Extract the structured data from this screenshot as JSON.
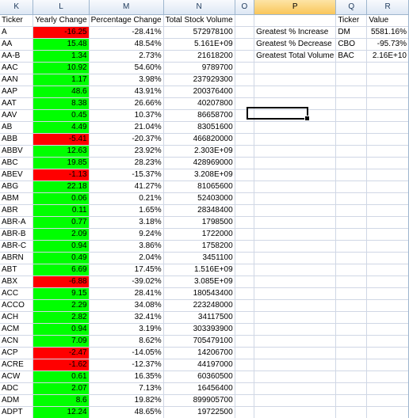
{
  "columns": [
    "K",
    "L",
    "M",
    "N",
    "O",
    "P",
    "Q",
    "R"
  ],
  "selected_column": "P",
  "headers": {
    "ticker": "Ticker",
    "yearly_change": "Yearly Change",
    "percentage": "Percentage Change",
    "total_volume": "Total Stock Volume",
    "summary_ticker": "Ticker",
    "summary_value": "Value"
  },
  "rows": [
    {
      "ticker": "A",
      "change": "-16.25",
      "status": "neg",
      "pct": "-28.41%",
      "volume": "572978100"
    },
    {
      "ticker": "AA",
      "change": "15.48",
      "status": "pos",
      "pct": "48.54%",
      "volume": "5.161E+09"
    },
    {
      "ticker": "AA-B",
      "change": "1.34",
      "status": "pos",
      "pct": "2.73%",
      "volume": "21618200"
    },
    {
      "ticker": "AAC",
      "change": "10.92",
      "status": "pos",
      "pct": "54.60%",
      "volume": "9789700"
    },
    {
      "ticker": "AAN",
      "change": "1.17",
      "status": "pos",
      "pct": "3.98%",
      "volume": "237929300"
    },
    {
      "ticker": "AAP",
      "change": "48.6",
      "status": "pos",
      "pct": "43.91%",
      "volume": "200376400"
    },
    {
      "ticker": "AAT",
      "change": "8.38",
      "status": "pos",
      "pct": "26.66%",
      "volume": "40207800"
    },
    {
      "ticker": "AAV",
      "change": "0.45",
      "status": "pos",
      "pct": "10.37%",
      "volume": "86658700"
    },
    {
      "ticker": "AB",
      "change": "4.49",
      "status": "pos",
      "pct": "21.04%",
      "volume": "83051600"
    },
    {
      "ticker": "ABB",
      "change": "-5.41",
      "status": "neg",
      "pct": "-20.37%",
      "volume": "466820000"
    },
    {
      "ticker": "ABBV",
      "change": "12.63",
      "status": "pos",
      "pct": "23.92%",
      "volume": "2.303E+09"
    },
    {
      "ticker": "ABC",
      "change": "19.85",
      "status": "pos",
      "pct": "28.23%",
      "volume": "428969000"
    },
    {
      "ticker": "ABEV",
      "change": "-1.13",
      "status": "neg",
      "pct": "-15.37%",
      "volume": "3.208E+09"
    },
    {
      "ticker": "ABG",
      "change": "22.18",
      "status": "pos",
      "pct": "41.27%",
      "volume": "81065600"
    },
    {
      "ticker": "ABM",
      "change": "0.06",
      "status": "pos",
      "pct": "0.21%",
      "volume": "52403000"
    },
    {
      "ticker": "ABR",
      "change": "0.11",
      "status": "pos",
      "pct": "1.65%",
      "volume": "28348400"
    },
    {
      "ticker": "ABR-A",
      "change": "0.77",
      "status": "pos",
      "pct": "3.18%",
      "volume": "1798500"
    },
    {
      "ticker": "ABR-B",
      "change": "2.09",
      "status": "pos",
      "pct": "9.24%",
      "volume": "1722000"
    },
    {
      "ticker": "ABR-C",
      "change": "0.94",
      "status": "pos",
      "pct": "3.86%",
      "volume": "1758200"
    },
    {
      "ticker": "ABRN",
      "change": "0.49",
      "status": "pos",
      "pct": "2.04%",
      "volume": "3451100"
    },
    {
      "ticker": "ABT",
      "change": "6.69",
      "status": "pos",
      "pct": "17.45%",
      "volume": "1.516E+09"
    },
    {
      "ticker": "ABX",
      "change": "-6.88",
      "status": "neg",
      "pct": "-39.02%",
      "volume": "3.085E+09"
    },
    {
      "ticker": "ACC",
      "change": "9.15",
      "status": "pos",
      "pct": "28.41%",
      "volume": "180543400"
    },
    {
      "ticker": "ACCO",
      "change": "2.29",
      "status": "pos",
      "pct": "34.08%",
      "volume": "223248000"
    },
    {
      "ticker": "ACH",
      "change": "2.82",
      "status": "pos",
      "pct": "32.41%",
      "volume": "34117500"
    },
    {
      "ticker": "ACM",
      "change": "0.94",
      "status": "pos",
      "pct": "3.19%",
      "volume": "303393900"
    },
    {
      "ticker": "ACN",
      "change": "7.09",
      "status": "pos",
      "pct": "8.62%",
      "volume": "705479100"
    },
    {
      "ticker": "ACP",
      "change": "-2.47",
      "status": "neg",
      "pct": "-14.05%",
      "volume": "14206700"
    },
    {
      "ticker": "ACRE",
      "change": "-1.62",
      "status": "neg",
      "pct": "-12.37%",
      "volume": "44197000"
    },
    {
      "ticker": "ACW",
      "change": "0.61",
      "status": "pos",
      "pct": "16.35%",
      "volume": "60360500"
    },
    {
      "ticker": "ADC",
      "change": "2.07",
      "status": "pos",
      "pct": "7.13%",
      "volume": "16456400"
    },
    {
      "ticker": "ADM",
      "change": "8.6",
      "status": "pos",
      "pct": "19.82%",
      "volume": "899905700"
    },
    {
      "ticker": "ADPT",
      "change": "12.24",
      "status": "pos",
      "pct": "48.65%",
      "volume": "19722500"
    }
  ],
  "summary": [
    {
      "label": "Greatest % Increase",
      "ticker": "DM",
      "value": "5581.16%"
    },
    {
      "label": "Greatest % Decrease",
      "ticker": "CBO",
      "value": "-95.73%"
    },
    {
      "label": "Greatest Total Volume",
      "ticker": "BAC",
      "value": "2.16E+10"
    }
  ],
  "colors": {
    "positive": "#00ff00",
    "negative": "#ff0000",
    "selected_header": "#f9c65a"
  }
}
